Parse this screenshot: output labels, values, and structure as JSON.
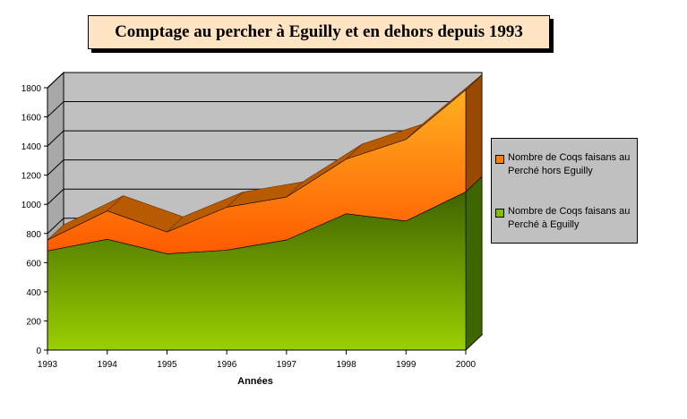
{
  "chart_data": {
    "type": "area",
    "title": "Comptage au percher à Eguilly et en dehors depuis 1993",
    "xlabel": "Années",
    "ylabel": "",
    "x": [
      "1993",
      "1994",
      "1995",
      "1996",
      "1997",
      "1998",
      "1999",
      "2000"
    ],
    "yticks": [
      "0",
      "200",
      "400",
      "600",
      "800",
      "1000",
      "1200",
      "1400",
      "1600",
      "1800"
    ],
    "ylim": [
      0,
      1800
    ],
    "stacked": true,
    "grid": true,
    "legend_position": "right",
    "series": [
      {
        "name": "Nombre de Coqs faisans au Perché à Eguilly",
        "values": [
          680,
          760,
          660,
          685,
          755,
          935,
          885,
          1085
        ],
        "color": "#9acd00"
      },
      {
        "name": "Nombre de Coqs faisans au Perché hors Eguilly",
        "values": [
          75,
          195,
          150,
          295,
          295,
          375,
          560,
          700
        ],
        "color": "#ff8c00"
      }
    ]
  }
}
